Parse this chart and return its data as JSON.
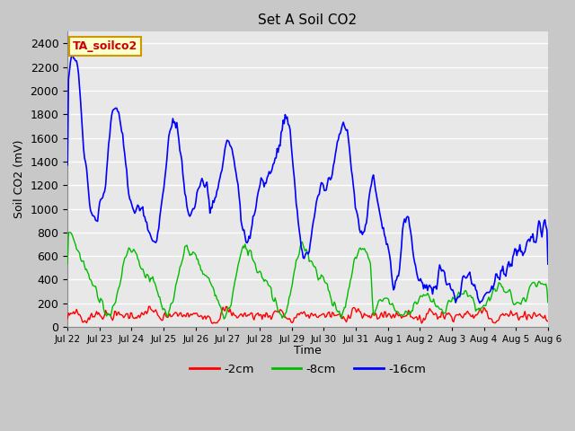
{
  "title": "Set A Soil CO2",
  "ylabel": "Soil CO2 (mV)",
  "xlabel": "Time",
  "legend_label": "TA_soilco2",
  "series_labels": [
    "-2cm",
    "-8cm",
    "-16cm"
  ],
  "series_colors": [
    "#ff0000",
    "#00bb00",
    "#0000ff"
  ],
  "ylim": [
    0,
    2500
  ],
  "yticks": [
    0,
    200,
    400,
    600,
    800,
    1000,
    1200,
    1400,
    1600,
    1800,
    2000,
    2200,
    2400
  ],
  "plot_bg_color": "#e8e8e8",
  "fig_bg_color": "#c8c8c8",
  "grid_color": "#ffffff",
  "tick_labels": [
    "Jul 22",
    "Jul 23",
    "Jul 24",
    "Jul 25",
    "Jul 26",
    "Jul 27",
    "Jul 28",
    "Jul 29",
    "Jul 30",
    "Jul 31",
    "Aug 1",
    "Aug 2",
    "Aug 3",
    "Aug 4",
    "Aug 5",
    "Aug 6"
  ],
  "n_points": 480
}
